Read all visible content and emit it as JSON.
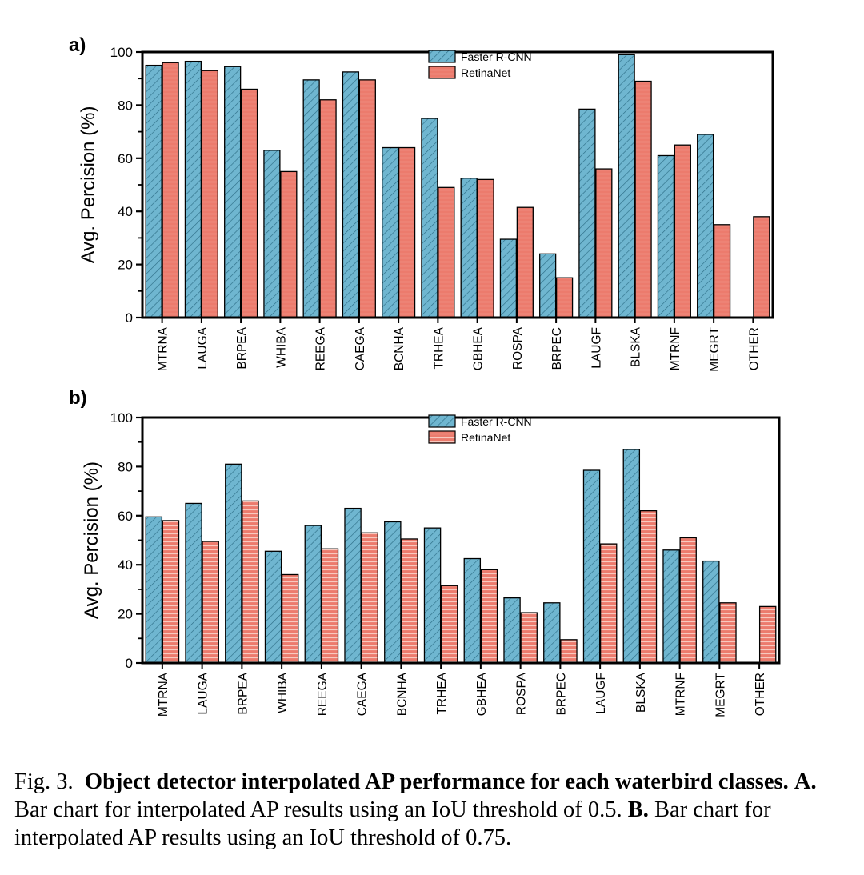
{
  "chart_data": [
    {
      "type": "bar",
      "panel_label": "a)",
      "ylabel": "Avg. Percision (%)",
      "ylim": [
        0,
        100
      ],
      "yticks": [
        0,
        20,
        40,
        60,
        80,
        100
      ],
      "legend_position": "top-center",
      "categories": [
        "MTRNA",
        "LAUGA",
        "BRPEA",
        "WHIBA",
        "REEGA",
        "CAEGA",
        "BCNHA",
        "TRHEA",
        "GBHEA",
        "ROSPA",
        "BRPEC",
        "LAUGF",
        "BLSKA",
        "MTRNF",
        "MEGRT",
        "OTHER"
      ],
      "series": [
        {
          "name": "Faster R-CNN",
          "values": [
            95,
            96.5,
            94.5,
            63,
            89.5,
            92.5,
            64,
            75,
            52.5,
            29.5,
            24,
            78.5,
            99,
            61,
            69,
            0
          ]
        },
        {
          "name": "RetinaNet",
          "values": [
            96,
            93,
            86,
            55,
            82,
            89.5,
            64,
            49,
            52,
            41.5,
            15,
            56,
            89,
            65,
            35,
            38
          ]
        }
      ]
    },
    {
      "type": "bar",
      "panel_label": "b)",
      "ylabel": "Avg. Percision (%)",
      "ylim": [
        0,
        100
      ],
      "yticks": [
        0,
        20,
        40,
        60,
        80,
        100
      ],
      "legend_position": "top-center",
      "categories": [
        "MTRNA",
        "LAUGA",
        "BRPEA",
        "WHIBA",
        "REEGA",
        "CAEGA",
        "BCNHA",
        "TRHEA",
        "GBHEA",
        "ROSPA",
        "BRPEC",
        "LAUGF",
        "BLSKA",
        "MTRNF",
        "MEGRT",
        "OTHER"
      ],
      "series": [
        {
          "name": "Faster R-CNN",
          "values": [
            59.5,
            65,
            81,
            45.5,
            56,
            63,
            57.5,
            55,
            42.5,
            26.5,
            24.5,
            78.5,
            87,
            46,
            41.5,
            0
          ]
        },
        {
          "name": "RetinaNet",
          "values": [
            58,
            49.5,
            66,
            36,
            46.5,
            53,
            50.5,
            31.5,
            38,
            20.5,
            9.5,
            48.5,
            62,
            51,
            24.5,
            23
          ]
        }
      ]
    }
  ],
  "colors": {
    "faster_rcnn_fill": "#6fb6d0",
    "faster_rcnn_hatch": "#2e6f88",
    "retinanet_fill": "#ec7b6d",
    "retinanet_hatch": "#f8c9bf",
    "axis": "#000000"
  },
  "caption": {
    "prefix": "Fig. 3.",
    "bold_title": "Object detector interpolated AP performance for each waterbird classes.",
    "a_label": "A.",
    "a_text": "Bar chart for interpolated AP results using an IoU threshold of 0.5.",
    "b_label": "B.",
    "b_text": "Bar chart for interpolated AP results using an IoU threshold of 0.75."
  }
}
